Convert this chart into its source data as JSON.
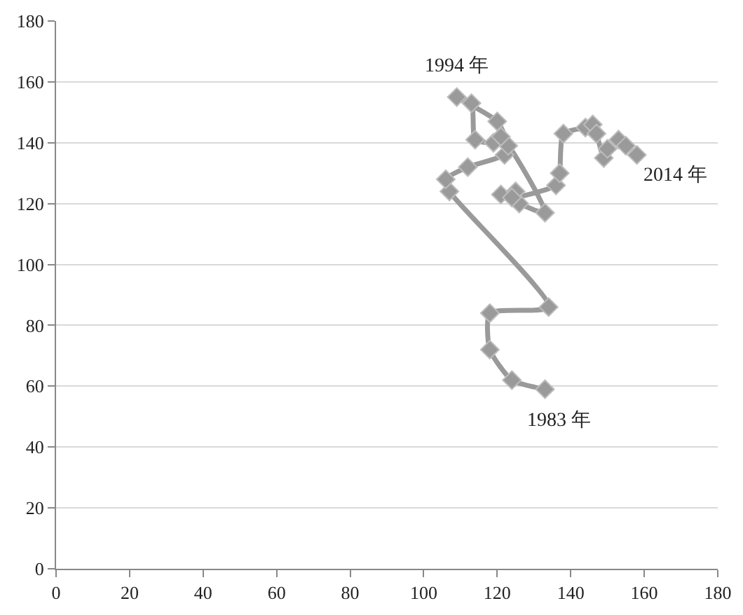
{
  "chart_data": {
    "type": "line",
    "x": [
      133,
      124,
      118,
      118,
      134,
      107,
      106,
      112,
      122,
      123,
      120,
      109,
      113,
      114,
      119,
      121,
      133,
      126,
      121,
      125,
      124,
      136,
      137,
      138,
      144,
      146,
      147,
      149,
      150,
      153,
      155,
      158
    ],
    "series": [
      {
        "color": "#9a9a9a",
        "values": [
          59,
          62,
          72,
          84,
          86,
          124,
          128,
          132,
          136,
          139,
          147,
          155,
          153,
          141,
          140,
          142,
          117,
          120,
          123,
          124,
          122,
          126,
          130,
          143,
          145,
          146,
          143,
          135,
          138,
          141,
          139,
          136
        ]
      }
    ],
    "xlim": [
      0,
      180
    ],
    "xticks": [
      0,
      20,
      40,
      60,
      80,
      100,
      120,
      140,
      160,
      180
    ],
    "ylim": [
      0,
      180
    ],
    "yticks": [
      0,
      20,
      40,
      60,
      80,
      100,
      120,
      140,
      160,
      180
    ],
    "grid": "y",
    "marker": "diamond",
    "line_style": "solid",
    "legend": false,
    "annotations": [
      {
        "text": "1994 年",
        "x": 109,
        "y": 155
      },
      {
        "text": "2014 年",
        "x": 158,
        "y": 136
      },
      {
        "text": "1983 年",
        "x": 133,
        "y": 59
      }
    ]
  }
}
